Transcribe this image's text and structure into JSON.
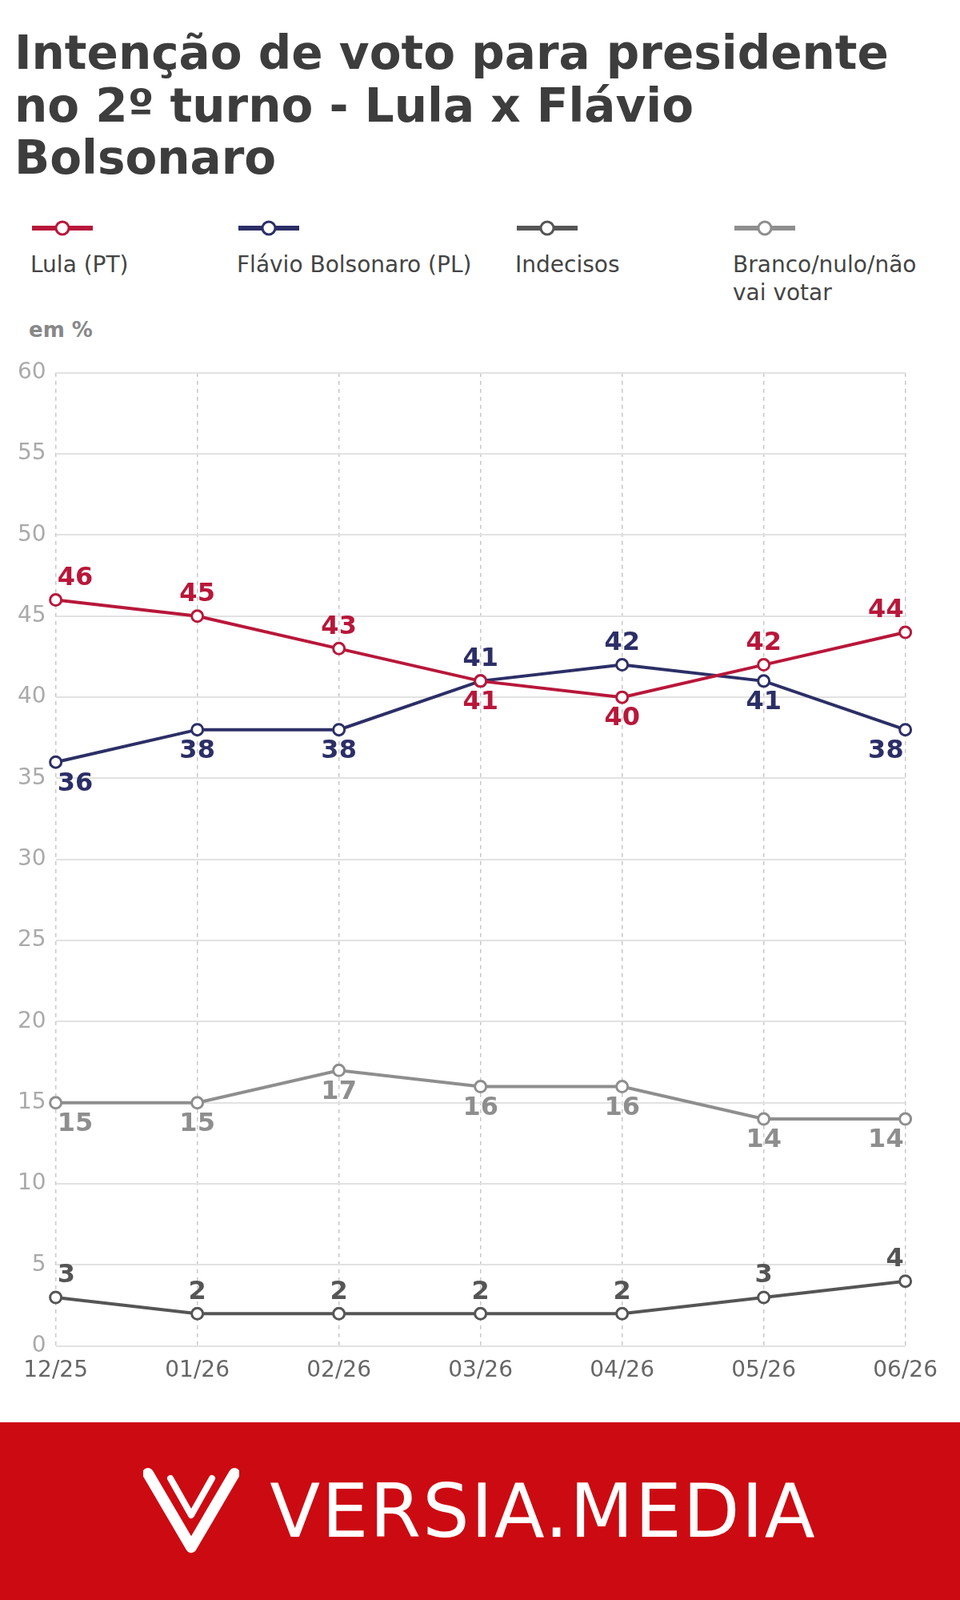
{
  "chart_data": {
    "type": "line",
    "title": "Intenção de voto para presidente no 2º turno - Lula x Flávio Bolsonaro",
    "subtitle": "em %",
    "categories": [
      "12/25",
      "01/26",
      "02/26",
      "03/26",
      "04/26",
      "05/26",
      "06/26"
    ],
    "series": [
      {
        "name": "Lula (PT)",
        "color": "#b8173a",
        "values": [
          46,
          45,
          43,
          41,
          40,
          42,
          44
        ]
      },
      {
        "name": "Flávio Bolsonaro (PL)",
        "color": "#2c2f66",
        "values": [
          36,
          38,
          38,
          41,
          42,
          41,
          38
        ]
      },
      {
        "name": "Indecisos",
        "color": "#555555",
        "values": [
          3,
          2,
          2,
          2,
          2,
          3,
          4
        ]
      },
      {
        "name": "Branco/nulo/não vai votar",
        "color": "#8e8e8e",
        "values": [
          15,
          15,
          17,
          16,
          16,
          14,
          14
        ]
      }
    ],
    "ylim": [
      0,
      60
    ],
    "yticks": [
      0,
      5,
      10,
      15,
      20,
      25,
      30,
      35,
      40,
      45,
      50,
      55,
      60
    ],
    "grid": true,
    "legend": "top",
    "data_labels": true,
    "marker": "circle"
  },
  "footer": {
    "text": "VERSIA.MEDIA"
  }
}
